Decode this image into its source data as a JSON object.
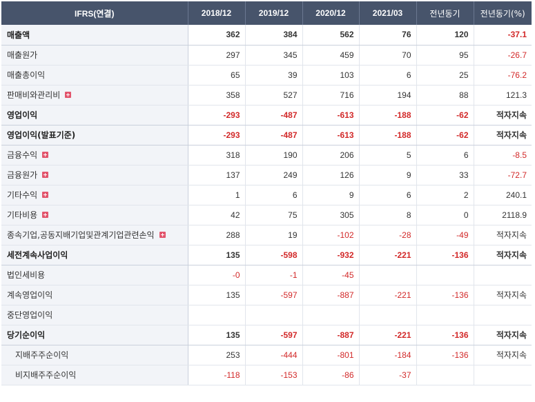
{
  "header": {
    "label_col": "IFRS(연결)",
    "periods": [
      "2018/12",
      "2019/12",
      "2020/12",
      "2021/03",
      "전년동기",
      "전년동기(%)"
    ]
  },
  "rows": [
    {
      "label": "매출액",
      "bold": true,
      "expand": false,
      "values": [
        "362",
        "384",
        "562",
        "76",
        "120",
        "-37.1"
      ]
    },
    {
      "label": "매출원가",
      "bold": false,
      "expand": false,
      "values": [
        "297",
        "345",
        "459",
        "70",
        "95",
        "-26.7"
      ]
    },
    {
      "label": "매출총이익",
      "bold": false,
      "expand": false,
      "values": [
        "65",
        "39",
        "103",
        "6",
        "25",
        "-76.2"
      ]
    },
    {
      "label": "판매비와관리비",
      "bold": false,
      "expand": true,
      "values": [
        "358",
        "527",
        "716",
        "194",
        "88",
        "121.3"
      ]
    },
    {
      "label": "영업이익",
      "bold": true,
      "expand": false,
      "values": [
        "-293",
        "-487",
        "-613",
        "-188",
        "-62",
        "적자지속"
      ]
    },
    {
      "label": "영업이익(발표기준)",
      "bold": true,
      "expand": false,
      "values": [
        "-293",
        "-487",
        "-613",
        "-188",
        "-62",
        "적자지속"
      ]
    },
    {
      "label": "금융수익",
      "bold": false,
      "expand": true,
      "values": [
        "318",
        "190",
        "206",
        "5",
        "6",
        "-8.5"
      ]
    },
    {
      "label": "금융원가",
      "bold": false,
      "expand": true,
      "values": [
        "137",
        "249",
        "126",
        "9",
        "33",
        "-72.7"
      ]
    },
    {
      "label": "기타수익",
      "bold": false,
      "expand": true,
      "values": [
        "1",
        "6",
        "9",
        "6",
        "2",
        "240.1"
      ]
    },
    {
      "label": "기타비용",
      "bold": false,
      "expand": true,
      "values": [
        "42",
        "75",
        "305",
        "8",
        "0",
        "2118.9"
      ]
    },
    {
      "label": "종속기업,공동지배기업및관계기업관련손익",
      "bold": false,
      "expand": true,
      "values": [
        "288",
        "19",
        "-102",
        "-28",
        "-49",
        "적자지속"
      ]
    },
    {
      "label": "세전계속사업이익",
      "bold": true,
      "expand": false,
      "values": [
        "135",
        "-598",
        "-932",
        "-221",
        "-136",
        "적자지속"
      ]
    },
    {
      "label": "법인세비용",
      "bold": false,
      "expand": false,
      "values": [
        "-0",
        "-1",
        "-45",
        "",
        "",
        ""
      ]
    },
    {
      "label": "계속영업이익",
      "bold": false,
      "expand": false,
      "values": [
        "135",
        "-597",
        "-887",
        "-221",
        "-136",
        "적자지속"
      ]
    },
    {
      "label": "중단영업이익",
      "bold": false,
      "expand": false,
      "values": [
        "",
        "",
        "",
        "",
        "",
        ""
      ]
    },
    {
      "label": "당기순이익",
      "bold": true,
      "expand": false,
      "values": [
        "135",
        "-597",
        "-887",
        "-221",
        "-136",
        "적자지속"
      ]
    },
    {
      "label": "지배주주순이익",
      "bold": false,
      "expand": false,
      "sub": true,
      "values": [
        "253",
        "-444",
        "-801",
        "-184",
        "-136",
        "적자지속"
      ]
    },
    {
      "label": "비지배주주순이익",
      "bold": false,
      "expand": false,
      "sub": true,
      "values": [
        "-118",
        "-153",
        "-86",
        "-37",
        "",
        ""
      ]
    }
  ],
  "colors": {
    "header_bg": "#47546b",
    "negative": "#d22828",
    "expand_icon": "#e2556d"
  },
  "icons": {
    "expand": "plus-square-icon"
  }
}
